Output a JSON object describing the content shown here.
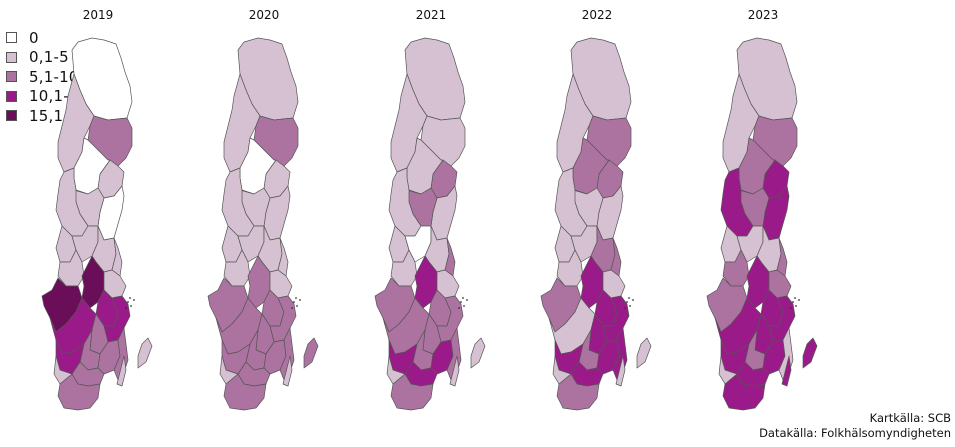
{
  "legend": {
    "items": [
      {
        "label": "0",
        "color": "#ffffff"
      },
      {
        "label": "0,1-5",
        "color": "#d6c1d2"
      },
      {
        "label": "5,1-10",
        "color": "#ac73a1"
      },
      {
        "label": "10,1-15",
        "color": "#9b1a89"
      },
      {
        "label": "15,1-",
        "color": "#6a0e59"
      }
    ]
  },
  "maps": [
    {
      "year": "2019",
      "region_classes": [
        0,
        1,
        2,
        1,
        0,
        0,
        1,
        1,
        1,
        1,
        1,
        1,
        1,
        4,
        4,
        1,
        3,
        3,
        3,
        2,
        2,
        2,
        3,
        2,
        2,
        1,
        1,
        2,
        1
      ]
    },
    {
      "year": "2020",
      "region_classes": [
        1,
        1,
        2,
        1,
        0,
        1,
        1,
        1,
        1,
        1,
        1,
        1,
        1,
        2,
        2,
        1,
        2,
        2,
        2,
        2,
        2,
        2,
        2,
        2,
        2,
        1,
        2,
        2,
        1
      ]
    },
    {
      "year": "2021",
      "region_classes": [
        1,
        1,
        1,
        2,
        1,
        1,
        2,
        1,
        1,
        0,
        1,
        2,
        1,
        2,
        3,
        1,
        2,
        2,
        2,
        2,
        2,
        3,
        3,
        3,
        2,
        1,
        1,
        2,
        1
      ]
    },
    {
      "year": "2022",
      "region_classes": [
        1,
        1,
        2,
        2,
        2,
        1,
        1,
        1,
        1,
        1,
        2,
        2,
        1,
        2,
        3,
        1,
        3,
        3,
        1,
        3,
        2,
        3,
        3,
        3,
        3,
        1,
        1,
        2,
        1
      ]
    },
    {
      "year": "2023",
      "region_classes": [
        1,
        1,
        2,
        3,
        2,
        3,
        2,
        3,
        1,
        1,
        1,
        2,
        2,
        2,
        3,
        2,
        3,
        3,
        3,
        3,
        2,
        3,
        3,
        3,
        1,
        3,
        3,
        3,
        1
      ]
    }
  ],
  "credits": {
    "map_source": "Kartkälla: SCB",
    "data_source": "Datakälla: Folkhälsomyndigheten"
  }
}
